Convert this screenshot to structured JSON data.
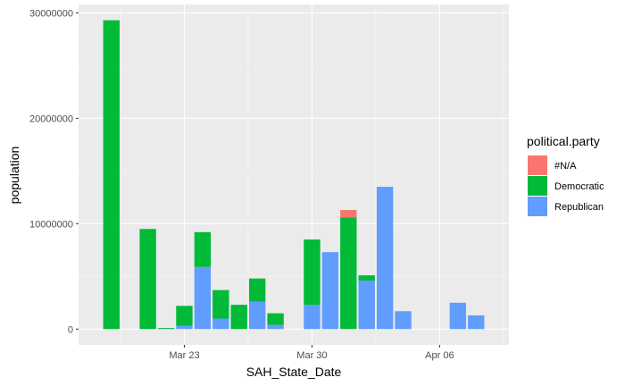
{
  "chart_data": {
    "type": "bar",
    "stacked": true,
    "xlabel": "SAH_State_Date",
    "ylabel": "population",
    "x_tick_labels": [
      "Mar 23",
      "Mar 30",
      "Apr 06"
    ],
    "x_tick_days": [
      23,
      30,
      37
    ],
    "y_ticks": [
      0,
      10000000,
      20000000,
      30000000
    ],
    "y_tick_labels": [
      "0",
      "10000000",
      "20000000",
      "30000000"
    ],
    "xlim_days": [
      17.2,
      40.8
    ],
    "ylim": [
      -1500000,
      30800000
    ],
    "grid": true,
    "legend": {
      "title": "political.party",
      "position": "right"
    },
    "series": [
      {
        "name": "#N/A",
        "color": "#F8766D"
      },
      {
        "name": "Democratic",
        "color": "#00BA38"
      },
      {
        "name": "Republican",
        "color": "#619CFF"
      }
    ],
    "dates": [
      "Mar 19",
      "Mar 21",
      "Mar 22",
      "Mar 23",
      "Mar 24",
      "Mar 25",
      "Mar 26",
      "Mar 27",
      "Mar 28",
      "Mar 30",
      "Mar 31",
      "Apr 01",
      "Apr 02",
      "Apr 03",
      "Apr 04",
      "Apr 05",
      "Apr 07",
      "Apr 08"
    ],
    "date_days": [
      19,
      21,
      22,
      23,
      24,
      25,
      26,
      27,
      28,
      30,
      31,
      32,
      33,
      34,
      35,
      36,
      38,
      39
    ],
    "values": {
      "#N/A": [
        0,
        0,
        0,
        0,
        0,
        0,
        0,
        0,
        0,
        0,
        0,
        700000,
        0,
        0,
        0,
        0,
        0,
        0
      ],
      "Democratic": [
        29300000,
        9500000,
        100000,
        1900000,
        3300000,
        2700000,
        2300000,
        2200000,
        1100000,
        6200000,
        0,
        10600000,
        500000,
        0,
        0,
        0,
        0,
        0
      ],
      "Republican": [
        0,
        0,
        0,
        300000,
        5900000,
        1000000,
        0,
        2600000,
        400000,
        2300000,
        7300000,
        0,
        4600000,
        13500000,
        1700000,
        0,
        2500000,
        1300000
      ]
    }
  }
}
